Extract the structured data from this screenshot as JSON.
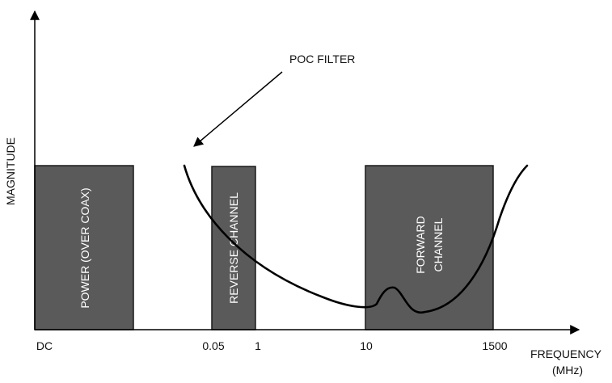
{
  "colors": {
    "band_fill": "#5a5a5a",
    "band_stroke": "#1a1a1a",
    "band_text": "#ffffff",
    "line": "#000000",
    "background": "#ffffff"
  },
  "axes": {
    "y_label": "MAGNITUDE",
    "x_label_line1": "FREQUENCY",
    "x_label_line2": "(MHz)",
    "ticks": [
      "DC",
      "0.05",
      "1",
      "10",
      "1500"
    ]
  },
  "bands": [
    {
      "label_line1": "POWER (OVER COAX)",
      "label_line2": ""
    },
    {
      "label_line1": "REVERSE CHANNEL",
      "label_line2": ""
    },
    {
      "label_line1": "FORWARD",
      "label_line2": "CHANNEL"
    }
  ],
  "callout": {
    "label": "POC FILTER"
  }
}
